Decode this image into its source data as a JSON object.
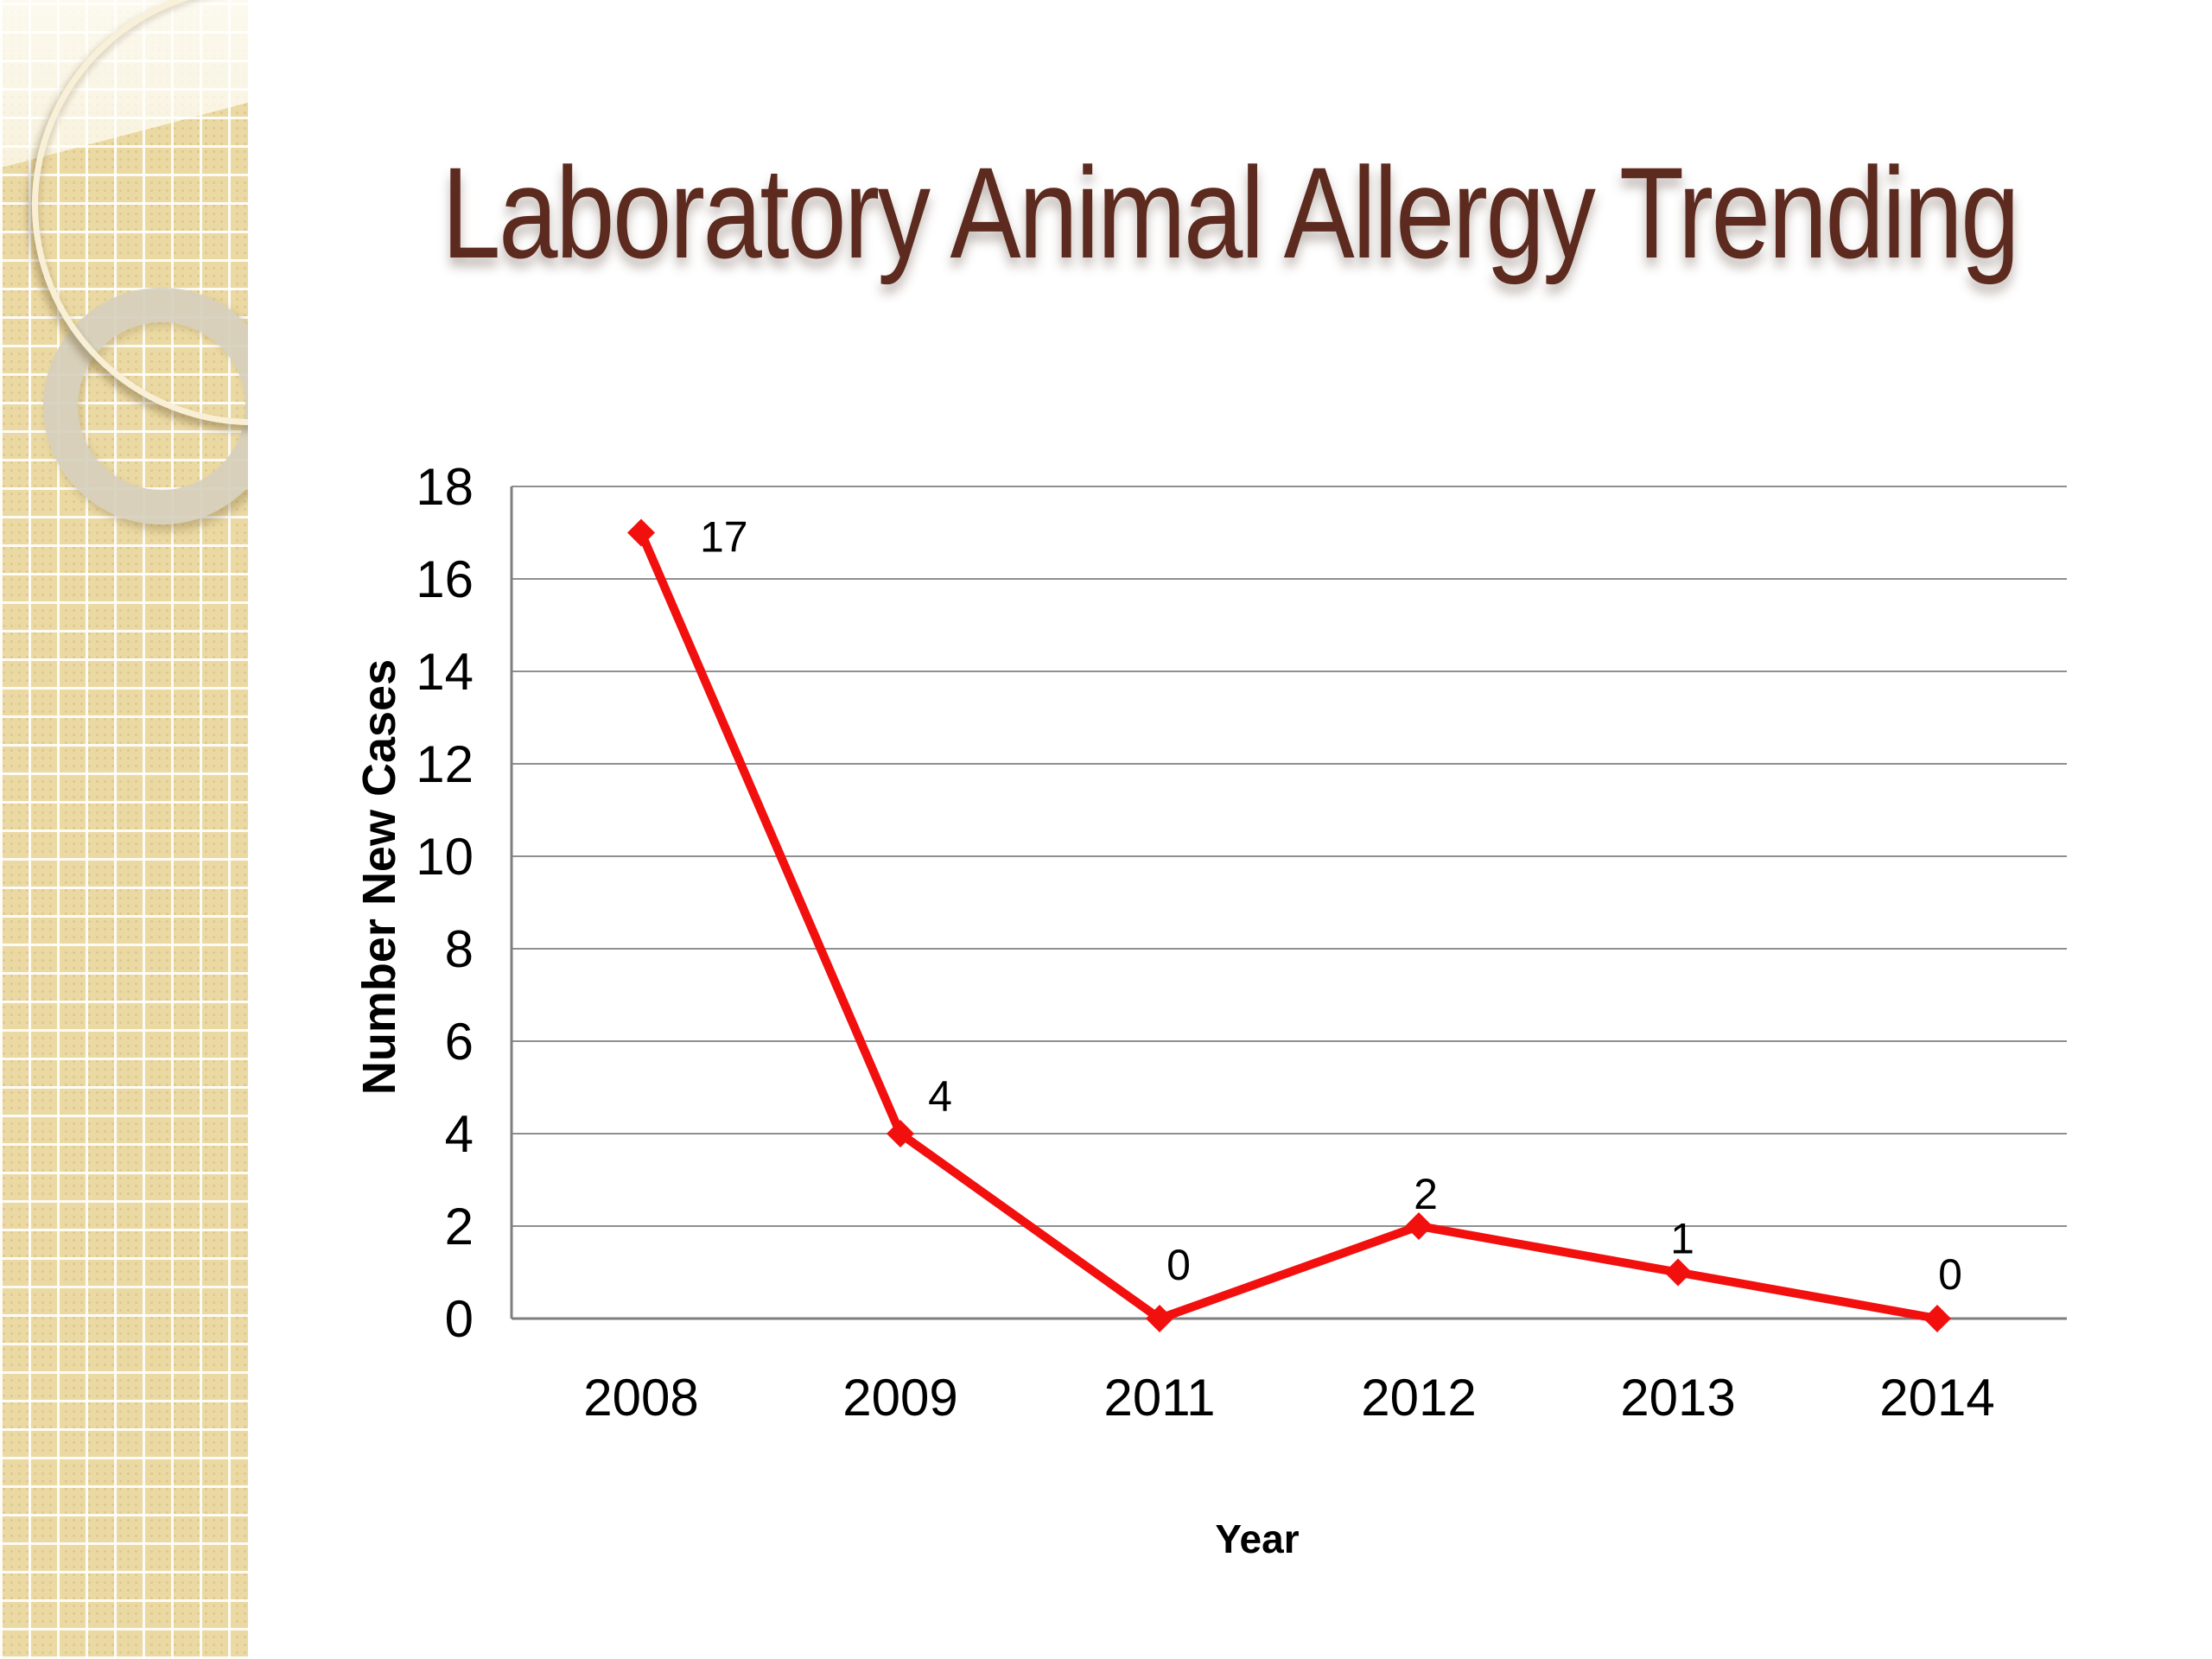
{
  "slide": {
    "title": "Laboratory Animal Allergy Trending"
  },
  "colors": {
    "title": "#5c2a1e",
    "series": "#f2100f",
    "gridline": "#8f8f8f",
    "axis": "#7f7f7f",
    "text": "#000000",
    "sidebar": "#ebd9a3"
  },
  "chart_data": {
    "type": "line",
    "title": "",
    "categories": [
      "2008",
      "2009",
      "2011",
      "2012",
      "2013",
      "2014"
    ],
    "series": [
      {
        "name": "Number New Cases",
        "values": [
          17,
          4,
          0,
          2,
          1,
          0
        ]
      }
    ],
    "point_labels": [
      "17",
      "4",
      "0",
      "2",
      "1",
      "0"
    ],
    "xlabel": "Year",
    "ylabel": "Number New Cases",
    "ylim": [
      0,
      18
    ],
    "yticks": [
      0,
      2,
      4,
      6,
      8,
      10,
      12,
      14,
      16,
      18
    ],
    "grid": "horizontal-only",
    "legend_position": "none",
    "marker": "diamond"
  }
}
